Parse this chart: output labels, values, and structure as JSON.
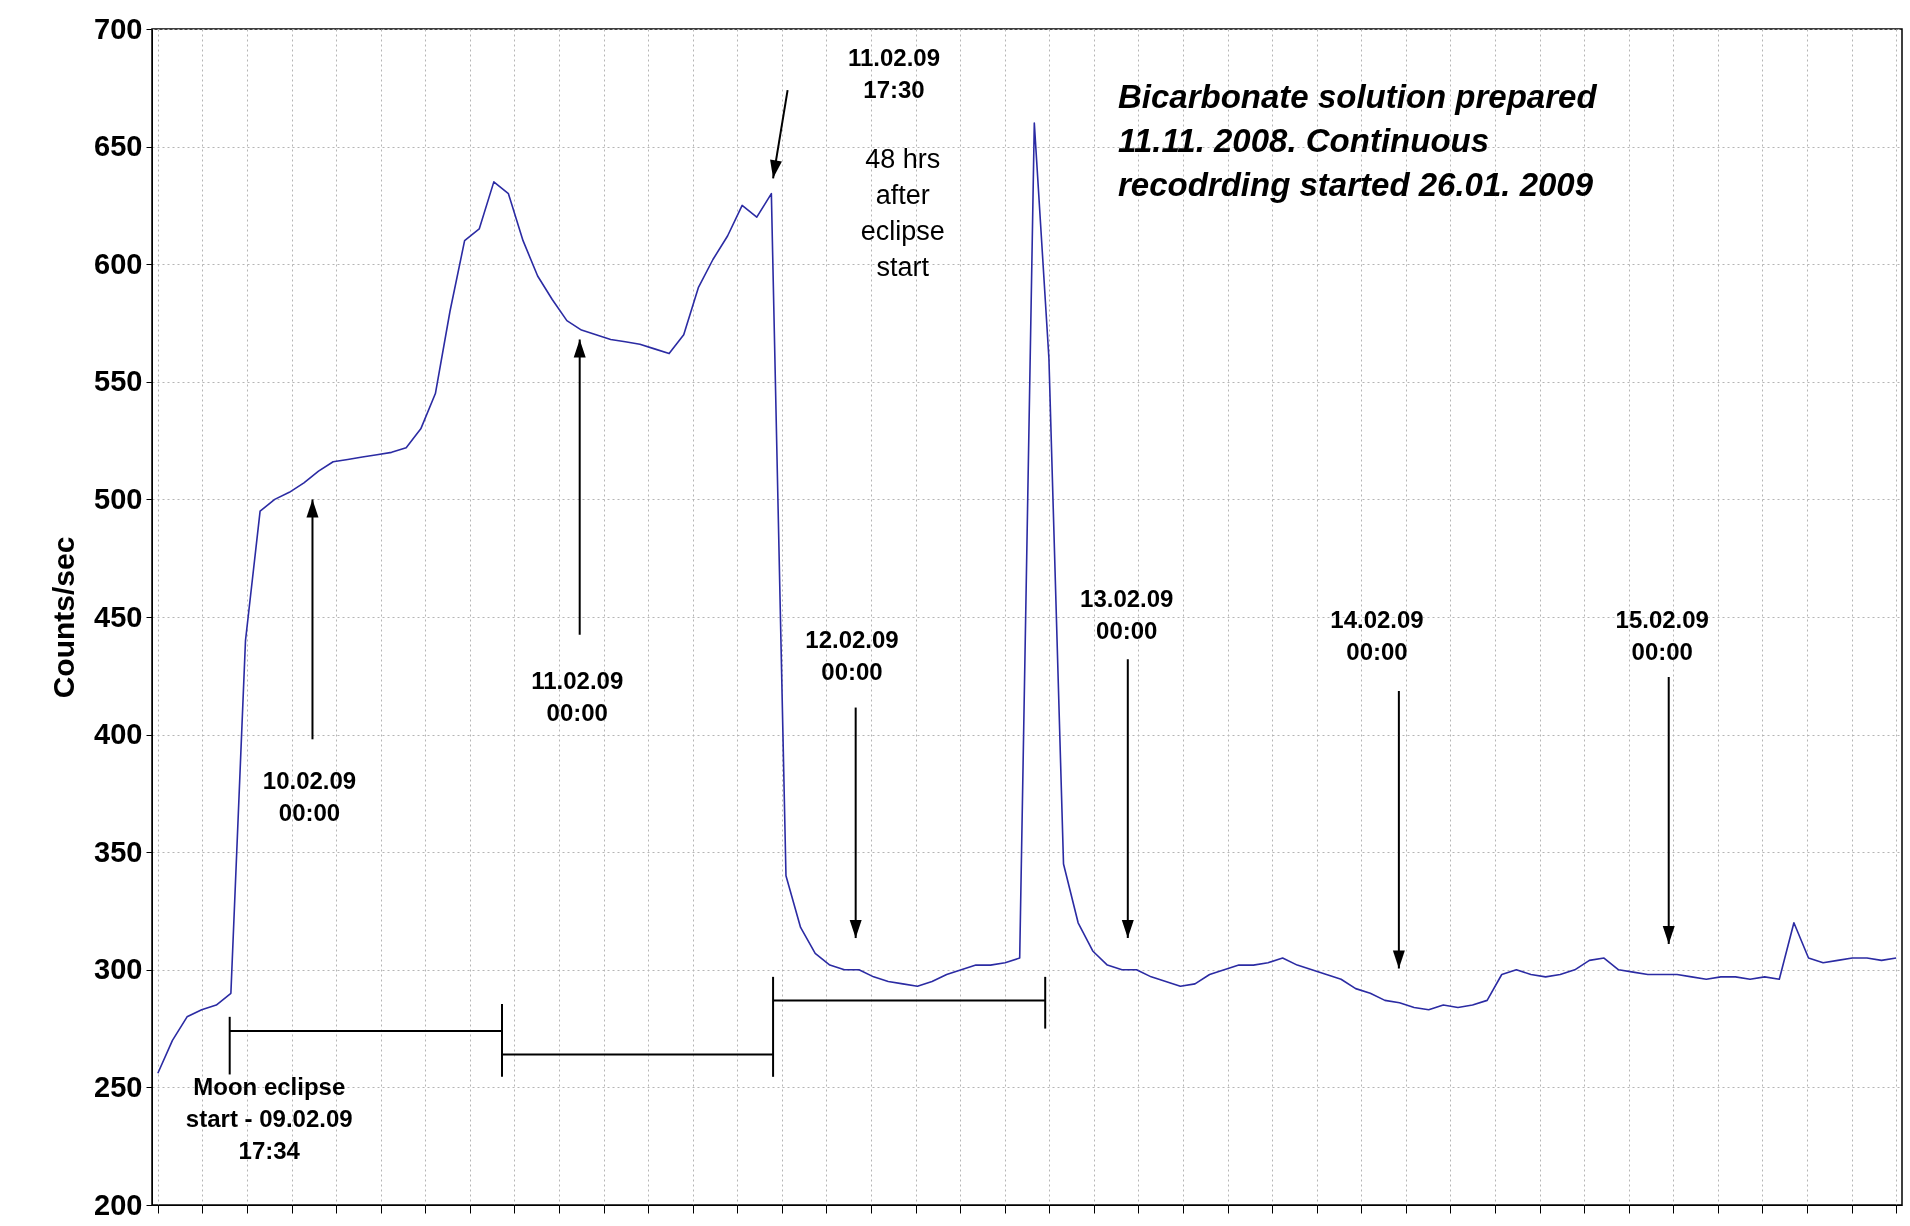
{
  "chart_data": {
    "type": "line",
    "ylabel": "Counts/sec",
    "categories": [
      null,
      null,
      null,
      null,
      null,
      null,
      null,
      null,
      null,
      null,
      null,
      null,
      null,
      null,
      null,
      null,
      null,
      null,
      null,
      null,
      null,
      null,
      null,
      null,
      null,
      null,
      null,
      null,
      null,
      null,
      null,
      null,
      null,
      null,
      null,
      null,
      null,
      null,
      null,
      null,
      null,
      null,
      null,
      null,
      null,
      null,
      null,
      null,
      null,
      null,
      null,
      null,
      null,
      null,
      null,
      null,
      null,
      null,
      null,
      null,
      null,
      null,
      null,
      null,
      null,
      null,
      null,
      null,
      null,
      null,
      null,
      null,
      null,
      null,
      null,
      null,
      null,
      null,
      null,
      null,
      null,
      null,
      null,
      null,
      null,
      null,
      null,
      null,
      null,
      null,
      null,
      null,
      null,
      null,
      null,
      null,
      null,
      null,
      null,
      null,
      null,
      null,
      null,
      null,
      null,
      null,
      null,
      null,
      null,
      null,
      null,
      null,
      null,
      null,
      null,
      null,
      null,
      null,
      null,
      null
    ],
    "series": [
      {
        "color": "#2b2ba3",
        "values": [
          256,
          270,
          280,
          283,
          285,
          290,
          440,
          495,
          500,
          503,
          507,
          512,
          516,
          517,
          518,
          519,
          520,
          522,
          530,
          545,
          580,
          610,
          615,
          635,
          630,
          610,
          595,
          585,
          576,
          572,
          570,
          568,
          567,
          566,
          564,
          562,
          570,
          590,
          602,
          612,
          625,
          620,
          630,
          340,
          318,
          307,
          302,
          300,
          300,
          297,
          295,
          294,
          293,
          295,
          298,
          300,
          302,
          302,
          303,
          305,
          660,
          560,
          345,
          320,
          308,
          302,
          300,
          300,
          297,
          295,
          293,
          294,
          298,
          300,
          302,
          302,
          303,
          305,
          302,
          300,
          298,
          296,
          292,
          290,
          287,
          286,
          284,
          283,
          285,
          284,
          285,
          287,
          298,
          300,
          298,
          297,
          298,
          300,
          304,
          305,
          300,
          299,
          298,
          298,
          298,
          297,
          296,
          297,
          297,
          296,
          297,
          296,
          320,
          305,
          303,
          304,
          305,
          305,
          304,
          305
        ]
      }
    ],
    "ylim": [
      200,
      700
    ],
    "yticks": [
      200,
      250,
      300,
      350,
      400,
      450,
      500,
      550,
      600,
      650,
      700
    ],
    "grid": true,
    "tick_labels": "y",
    "marker": "none",
    "line_style": "solid",
    "annotations": [
      "11.02.09\n17:30",
      "48 hrs\nafter\neclipse\nstart",
      "Bicarbonate solution prepared\n11.11. 2008. Continuous\nrecodrding started 26.01. 2009",
      "10.02.09\n00:00",
      "11.02.09\n00:00",
      "12.02.09\n00:00",
      "13.02.09\n00:00",
      "14.02.09\n00:00",
      "15.02.09\n00:00",
      "Moon eclipse\nstart - 09.02.09\n17:34"
    ]
  }
}
